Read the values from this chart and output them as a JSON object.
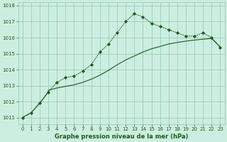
{
  "title": "Graphe pression niveau de la mer (hPa)",
  "background_color": "#cceee0",
  "grid_color": "#99ccbb",
  "line_color": "#1a5c1a",
  "xlim": [
    -0.5,
    23.5
  ],
  "ylim": [
    1010.6,
    1018.2
  ],
  "yticks": [
    1011,
    1012,
    1013,
    1014,
    1015,
    1016,
    1017,
    1018
  ],
  "xticks": [
    0,
    1,
    2,
    3,
    4,
    5,
    6,
    7,
    8,
    9,
    10,
    11,
    12,
    13,
    14,
    15,
    16,
    17,
    18,
    19,
    20,
    21,
    22,
    23
  ],
  "series1_x": [
    0,
    1,
    2,
    3,
    4,
    5,
    6,
    7,
    8,
    9,
    10,
    11,
    12,
    13,
    14,
    15,
    16,
    17,
    18,
    19,
    20,
    21,
    22,
    23
  ],
  "series1_y": [
    1011.0,
    1011.3,
    1011.9,
    1012.6,
    1013.2,
    1013.5,
    1013.6,
    1013.9,
    1014.3,
    1015.1,
    1015.6,
    1016.3,
    1017.0,
    1017.5,
    1017.3,
    1016.9,
    1016.7,
    1016.5,
    1016.3,
    1016.1,
    1016.1,
    1016.3,
    1016.0,
    1015.4
  ],
  "series2_x": [
    0,
    1,
    2,
    3,
    3,
    4,
    5,
    6,
    7,
    8,
    9,
    10,
    11,
    12,
    13,
    14,
    15,
    16,
    17,
    18,
    19,
    20,
    21,
    22,
    23
  ],
  "series2_y": [
    1011.0,
    1011.3,
    1011.9,
    1012.6,
    1012.7,
    1012.85,
    1012.95,
    1013.05,
    1013.2,
    1013.4,
    1013.65,
    1013.95,
    1014.3,
    1014.6,
    1014.85,
    1015.1,
    1015.3,
    1015.45,
    1015.6,
    1015.7,
    1015.78,
    1015.85,
    1015.9,
    1015.95,
    1015.4
  ],
  "xlabel_fontsize": 6.0,
  "tick_fontsize": 5.0,
  "figsize": [
    3.2,
    2.0
  ],
  "dpi": 100
}
